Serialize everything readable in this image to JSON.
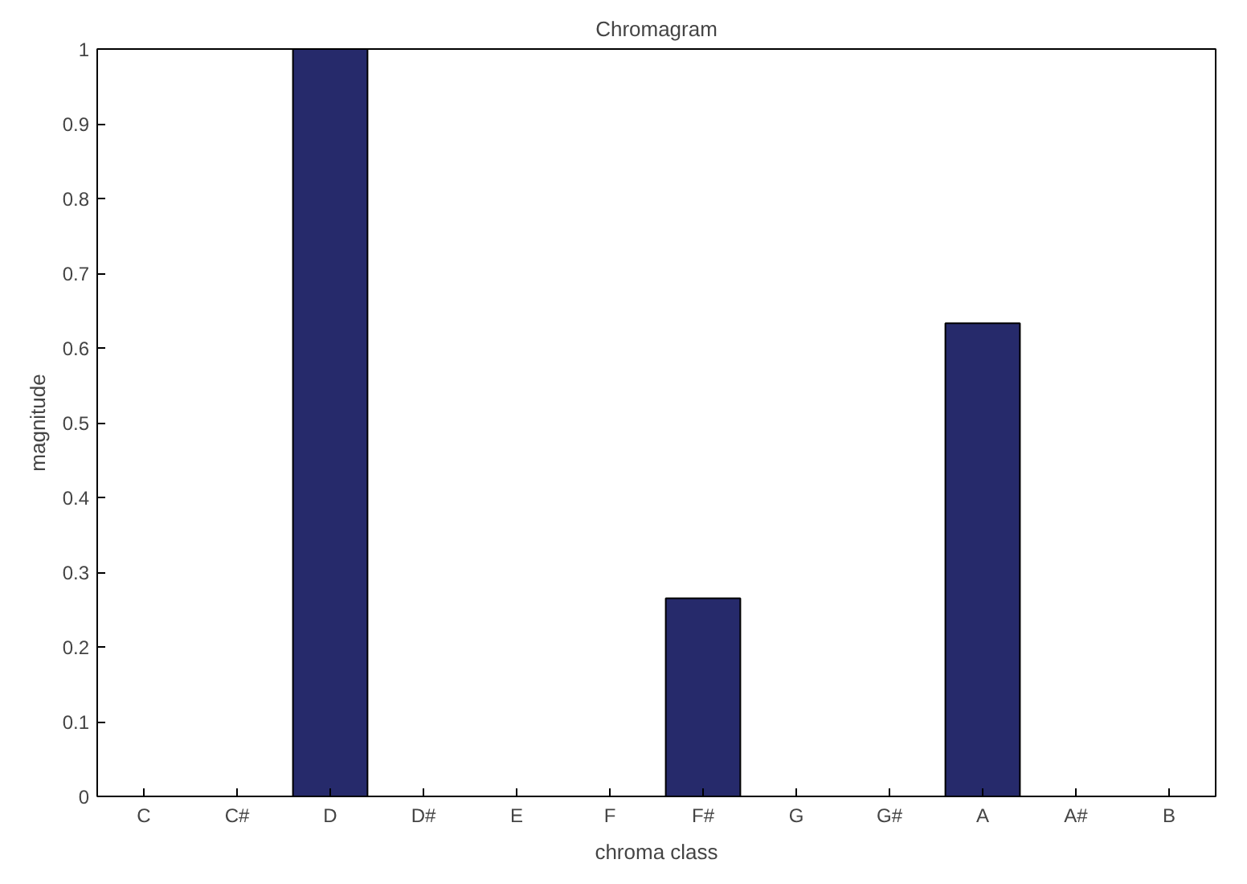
{
  "chart_data": {
    "type": "bar",
    "title": "Chromagram",
    "xlabel": "chroma class",
    "ylabel": "magnitude",
    "categories": [
      "C",
      "C#",
      "D",
      "D#",
      "E",
      "F",
      "F#",
      "G",
      "G#",
      "A",
      "A#",
      "B"
    ],
    "values": [
      0,
      0,
      1,
      0,
      0,
      0,
      0.265,
      0,
      0,
      0.633,
      0,
      0
    ],
    "color": "#262a6b",
    "ylim": [
      0,
      1
    ],
    "yticks": [
      0,
      0.1,
      0.2,
      0.3,
      0.4,
      0.5,
      0.6,
      0.7,
      0.8,
      0.9,
      1
    ],
    "grid": false
  }
}
